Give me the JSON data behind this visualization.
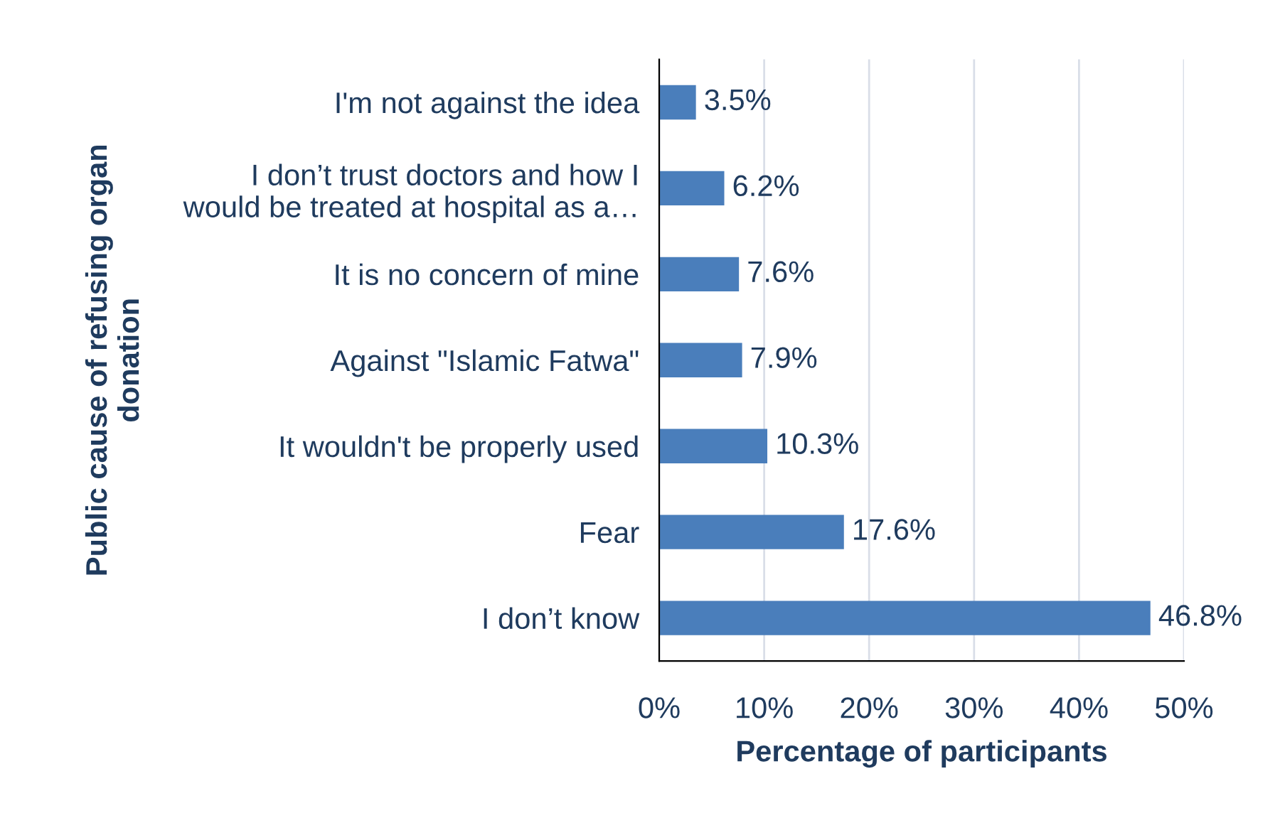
{
  "chart_data": {
    "type": "bar",
    "orientation": "horizontal",
    "categories": [
      "I'm not against the idea",
      "I don’t trust doctors and how I\nwould be treated at hospital as a…",
      "It is no concern of mine",
      "Against \"Islamic Fatwa\"",
      "It wouldn't be properly used",
      "Fear",
      "I don’t know"
    ],
    "values": [
      3.5,
      6.2,
      7.6,
      7.9,
      10.3,
      17.6,
      46.8
    ],
    "value_labels": [
      "3.5%",
      "6.2%",
      "7.6%",
      "7.9%",
      "10.3%",
      "17.6%",
      "46.8%"
    ],
    "color": "#4a7ebb",
    "xlim": [
      0,
      50
    ],
    "xticks": [
      {
        "value": 0,
        "label": "0%"
      },
      {
        "value": 10,
        "label": "10%"
      },
      {
        "value": 20,
        "label": "20%"
      },
      {
        "value": 30,
        "label": "30%"
      },
      {
        "value": 40,
        "label": "40%"
      },
      {
        "value": 50,
        "label": "50%"
      }
    ],
    "xlabel": "Percentage of participants",
    "ylabel": "Public cause of refusing organ\ndonation",
    "grid": "x"
  }
}
